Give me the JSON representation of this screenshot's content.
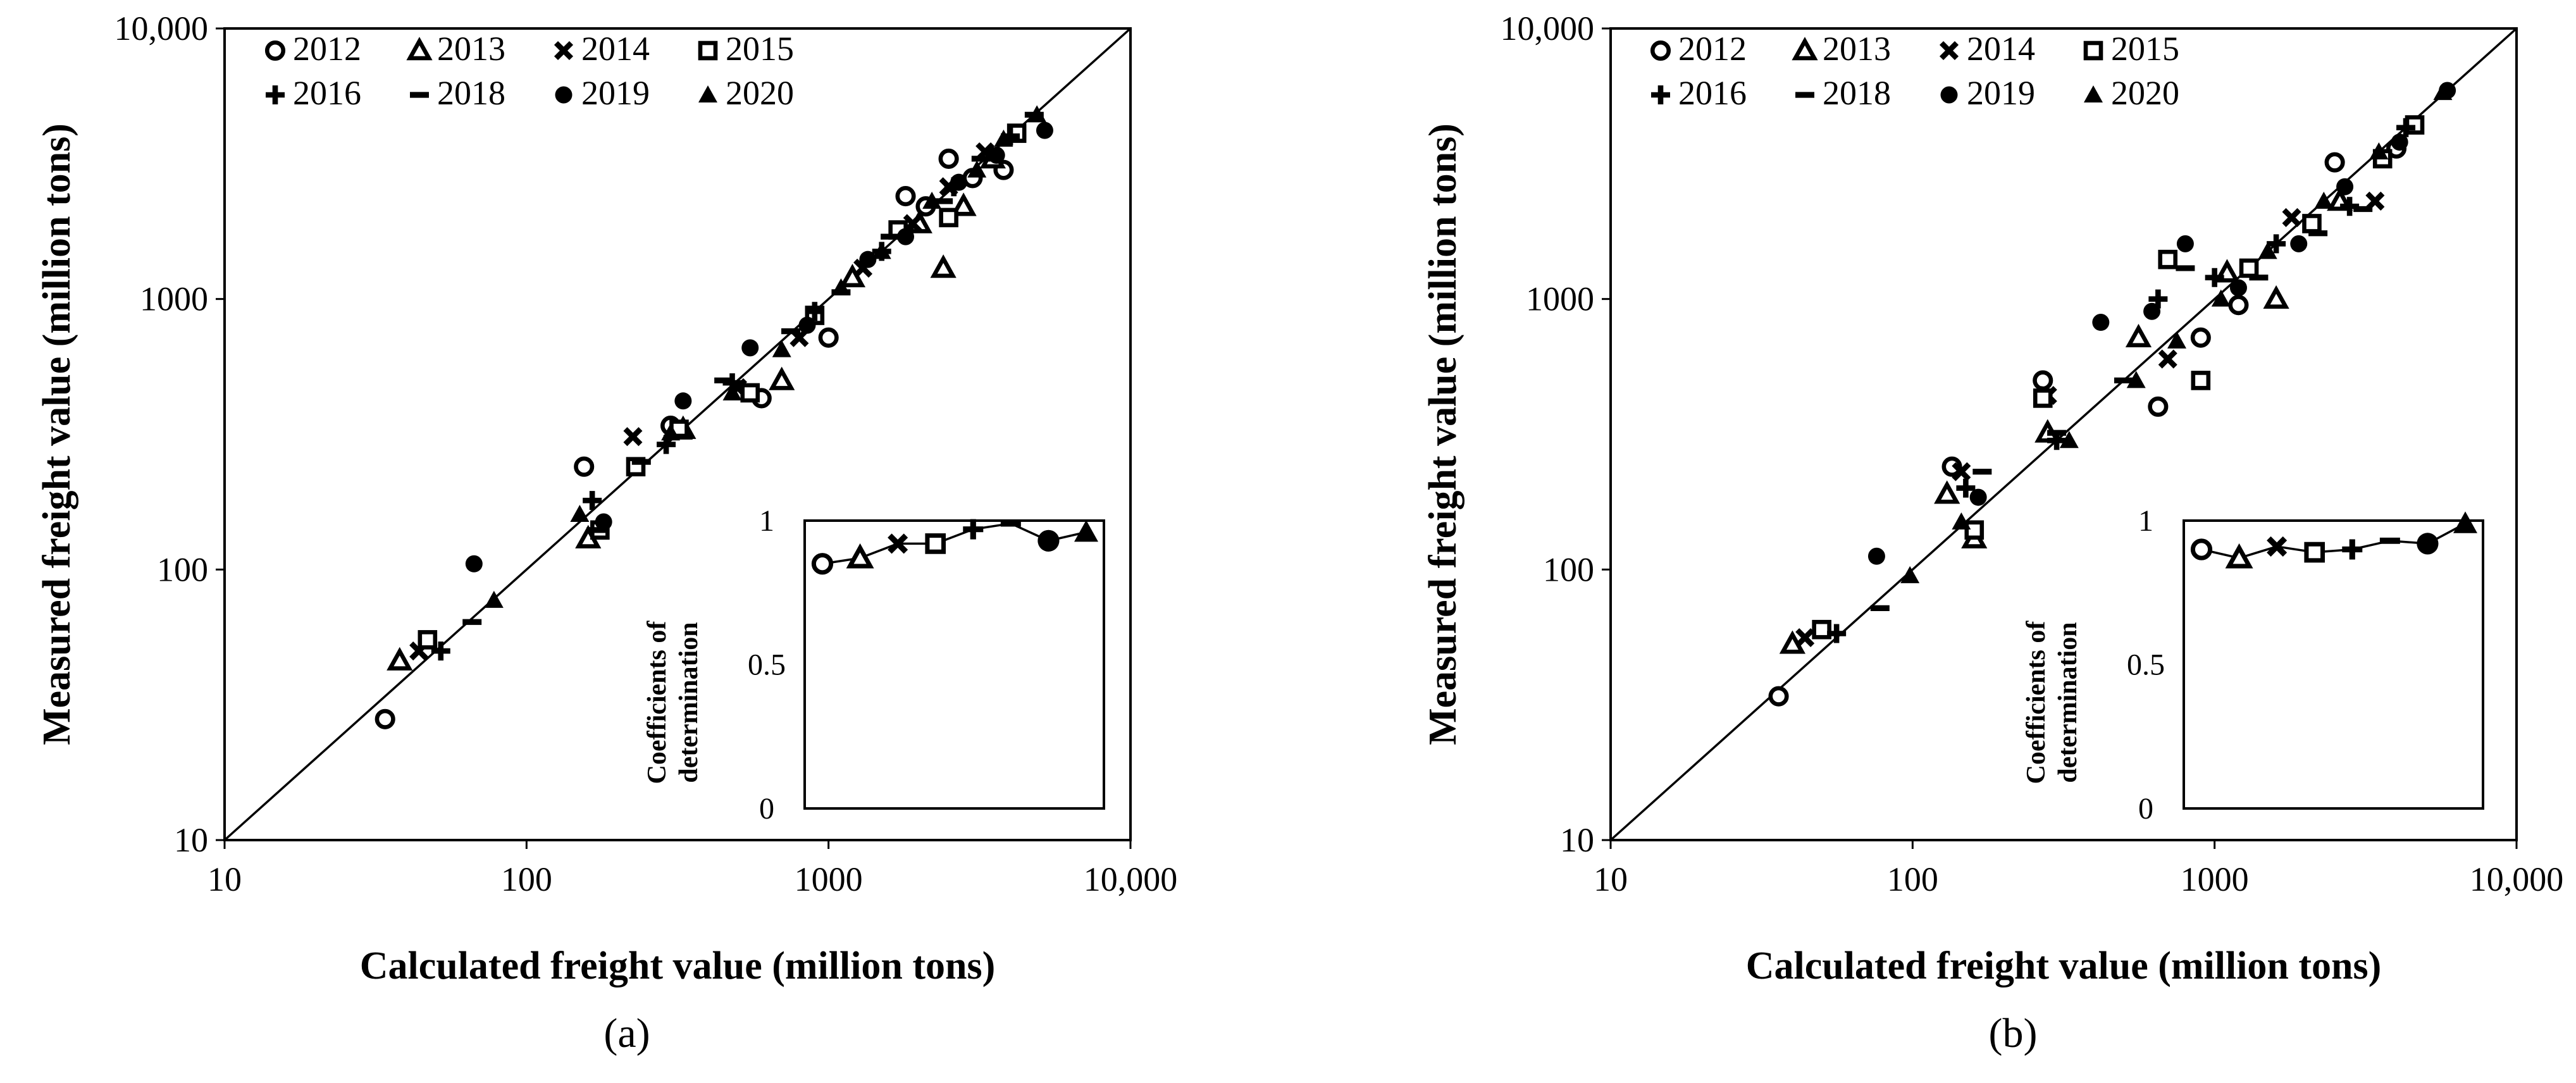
{
  "chart_data": [
    {
      "panel": "a",
      "type": "scatter",
      "subtitle": "(a)",
      "xlabel": "Calculated freight value (million tons)",
      "ylabel": "Measured freight value (million tons)",
      "xscale": "log",
      "yscale": "log",
      "xlim": [
        10,
        10000
      ],
      "ylim": [
        10,
        10000
      ],
      "xticks": [
        "10",
        "100",
        "1000",
        "10,000"
      ],
      "yticks": [
        "10",
        "100",
        "1000",
        "10,000"
      ],
      "reference_line": "y = x",
      "legend_position": "top-left",
      "legend": [
        {
          "name": "2012",
          "marker": "open-circle"
        },
        {
          "name": "2013",
          "marker": "open-triangle"
        },
        {
          "name": "2014",
          "marker": "cross"
        },
        {
          "name": "2015",
          "marker": "open-square"
        },
        {
          "name": "2016",
          "marker": "plus"
        },
        {
          "name": "2018",
          "marker": "dash"
        },
        {
          "name": "2019",
          "marker": "filled-circle"
        },
        {
          "name": "2020",
          "marker": "filled-triangle"
        }
      ],
      "series": [
        {
          "name": "2012",
          "x": [
            34,
            155,
            300,
            600,
            1000,
            1800,
            2100,
            2500,
            3000,
            3800
          ],
          "y": [
            28,
            240,
            340,
            430,
            720,
            2400,
            2200,
            3300,
            2800,
            3000
          ]
        },
        {
          "name": "2013",
          "x": [
            38,
            160,
            330,
            700,
            1200,
            2000,
            2400,
            2800,
            3500
          ],
          "y": [
            46,
            130,
            330,
            500,
            1200,
            1900,
            1300,
            2200,
            3300
          ]
        },
        {
          "name": "2014",
          "x": [
            44,
            225,
            500,
            800,
            1300,
            1900,
            2500,
            3300
          ],
          "y": [
            50,
            310,
            470,
            720,
            1300,
            1900,
            2600,
            3500
          ]
        },
        {
          "name": "2015",
          "x": [
            47,
            175,
            230,
            320,
            550,
            900,
            1700,
            2500,
            4200
          ],
          "y": [
            55,
            140,
            240,
            330,
            450,
            870,
            1800,
            2000,
            4100
          ]
        },
        {
          "name": "2016",
          "x": [
            52,
            165,
            290,
            480,
            900,
            1500,
            2600,
            4000
          ],
          "y": [
            50,
            180,
            290,
            490,
            900,
            1500,
            2600,
            4000
          ]
        },
        {
          "name": "2018",
          "x": [
            66,
            170,
            240,
            330,
            450,
            750,
            1100,
            1600,
            2400,
            3200,
            4800
          ],
          "y": [
            64,
            140,
            250,
            310,
            500,
            760,
            1060,
            1700,
            2300,
            3300,
            4800
          ]
        },
        {
          "name": "2019",
          "x": [
            67,
            180,
            330,
            550,
            850,
            1350,
            1800,
            2700,
            3600,
            5200
          ],
          "y": [
            105,
            150,
            420,
            660,
            800,
            1400,
            1700,
            2700,
            3400,
            4200
          ]
        },
        {
          "name": "2020",
          "x": [
            78,
            150,
            300,
            480,
            700,
            1100,
            1500,
            2200,
            3100,
            3800,
            4900
          ],
          "y": [
            77,
            160,
            320,
            450,
            650,
            1100,
            1500,
            2300,
            3000,
            3900,
            4800
          ]
        }
      ],
      "inset": {
        "ylabel": "Coefficients of determination",
        "ylim": [
          0,
          1
        ],
        "yticks": [
          "0",
          "0.5",
          "1"
        ],
        "series": [
          "2012",
          "2013",
          "2014",
          "2015",
          "2016",
          "2018",
          "2019",
          "2020"
        ],
        "values": [
          0.85,
          0.87,
          0.92,
          0.92,
          0.97,
          0.99,
          0.93,
          0.96
        ]
      }
    },
    {
      "panel": "b",
      "type": "scatter",
      "subtitle": "(b)",
      "xlabel": "Calculated freight value (million tons)",
      "ylabel": "Measured freight value (million tons)",
      "xscale": "log",
      "yscale": "log",
      "xlim": [
        10,
        10000
      ],
      "ylim": [
        10,
        10000
      ],
      "xticks": [
        "10",
        "100",
        "1000",
        "10,000"
      ],
      "yticks": [
        "10",
        "100",
        "1000",
        "10,000"
      ],
      "reference_line": "y = x",
      "legend_position": "top-left",
      "legend": [
        {
          "name": "2012",
          "marker": "open-circle"
        },
        {
          "name": "2013",
          "marker": "open-triangle"
        },
        {
          "name": "2014",
          "marker": "cross"
        },
        {
          "name": "2015",
          "marker": "open-square"
        },
        {
          "name": "2016",
          "marker": "plus"
        },
        {
          "name": "2018",
          "marker": "dash"
        },
        {
          "name": "2019",
          "marker": "filled-circle"
        },
        {
          "name": "2020",
          "marker": "filled-triangle"
        }
      ],
      "series": [
        {
          "name": "2012",
          "x": [
            36,
            135,
            270,
            650,
            900,
            1200,
            2500,
            4000
          ],
          "y": [
            34,
            240,
            500,
            400,
            720,
            950,
            3200,
            3600
          ]
        },
        {
          "name": "2013",
          "x": [
            40,
            130,
            160,
            280,
            560,
            1100,
            1600,
            2600
          ],
          "y": [
            53,
            190,
            130,
            320,
            720,
            1250,
            1000,
            2300
          ]
        },
        {
          "name": "2014",
          "x": [
            44,
            145,
            280,
            700,
            900,
            1800,
            3400
          ],
          "y": [
            56,
            230,
            440,
            600,
            500,
            2000,
            2300
          ]
        },
        {
          "name": "2015",
          "x": [
            50,
            160,
            270,
            700,
            900,
            1300,
            2100,
            3600,
            4600
          ],
          "y": [
            60,
            140,
            430,
            1400,
            500,
            1300,
            1900,
            3300,
            4400
          ]
        },
        {
          "name": "2016",
          "x": [
            56,
            150,
            300,
            650,
            1000,
            1600,
            2800,
            4300
          ],
          "y": [
            58,
            200,
            300,
            1000,
            1200,
            1600,
            2200,
            4300
          ]
        },
        {
          "name": "2018",
          "x": [
            78,
            170,
            300,
            500,
            800,
            1400,
            2200,
            3100
          ],
          "y": [
            72,
            230,
            320,
            500,
            1300,
            1200,
            1750,
            2150
          ]
        },
        {
          "name": "2019",
          "x": [
            76,
            165,
            420,
            620,
            800,
            1200,
            1900,
            2700,
            4100,
            5900
          ],
          "y": [
            112,
            185,
            820,
            900,
            1600,
            1100,
            1600,
            2600,
            3800,
            5900
          ]
        },
        {
          "name": "2020",
          "x": [
            98,
            145,
            330,
            550,
            750,
            1050,
            1500,
            2300,
            3500,
            5700
          ],
          "y": [
            95,
            150,
            300,
            500,
            700,
            1000,
            1500,
            2300,
            3500,
            5800
          ]
        }
      ],
      "inset": {
        "ylabel": "Coefficients of determination",
        "ylim": [
          0,
          1
        ],
        "yticks": [
          "0",
          "0.5",
          "1"
        ],
        "series": [
          "2012",
          "2013",
          "2014",
          "2015",
          "2016",
          "2018",
          "2019",
          "2020"
        ],
        "values": [
          0.9,
          0.87,
          0.91,
          0.89,
          0.9,
          0.93,
          0.92,
          0.99
        ]
      }
    }
  ]
}
